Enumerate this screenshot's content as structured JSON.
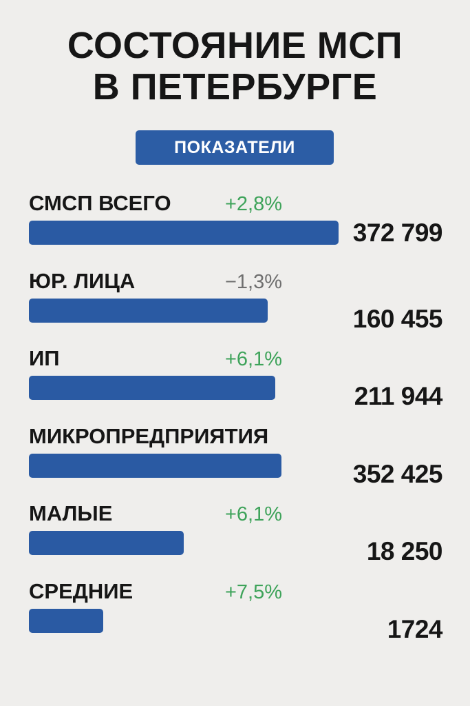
{
  "title_line1": "СОСТОЯНИЕ МСП",
  "title_line2": "В ПЕТЕРБУРГЕ",
  "badge": "ПОКАЗАТЕЛИ",
  "colors": {
    "background": "#efeeec",
    "bar": "#2a5aa3",
    "badge": "#2c5da5",
    "positive": "#3ea35a",
    "negative": "#6f6f6f"
  },
  "chart_data": {
    "type": "bar",
    "orientation": "horizontal",
    "categories": [
      "СМСП ВСЕГО",
      "ЮР. ЛИЦА",
      "ИП",
      "МИКРОПРЕДПРИЯТИЯ",
      "МАЛЫЕ",
      "СРЕДНИЕ"
    ],
    "values": [
      372799,
      160455,
      211944,
      352425,
      18250,
      1724
    ],
    "value_labels": [
      "372 799",
      "160 455",
      "211 944",
      "352 425",
      "18 250",
      "1724"
    ],
    "changes": [
      "+2,8%",
      "−1,3%",
      "+6,1%",
      "",
      "+6,1%",
      "+7,5%"
    ],
    "change_sign": [
      "pos",
      "neg",
      "pos",
      "",
      "pos",
      "pos"
    ],
    "bar_fill": [
      1.0,
      0.77,
      0.795,
      0.815,
      0.5,
      0.24
    ]
  }
}
